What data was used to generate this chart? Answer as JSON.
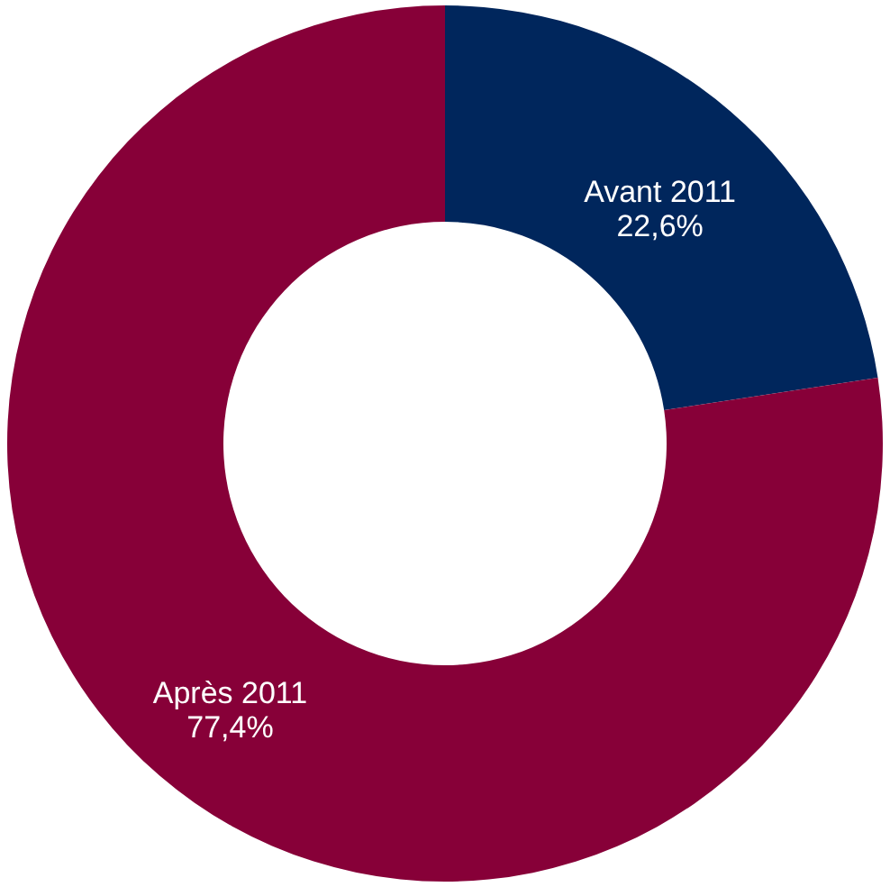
{
  "chart_data": {
    "type": "donut",
    "categories": [
      "Avant 2011",
      "Après 2011"
    ],
    "values": [
      22.6,
      77.4
    ],
    "colors": [
      "#00265c",
      "#870038"
    ],
    "value_labels": [
      "22,6%",
      "77,4%"
    ]
  }
}
